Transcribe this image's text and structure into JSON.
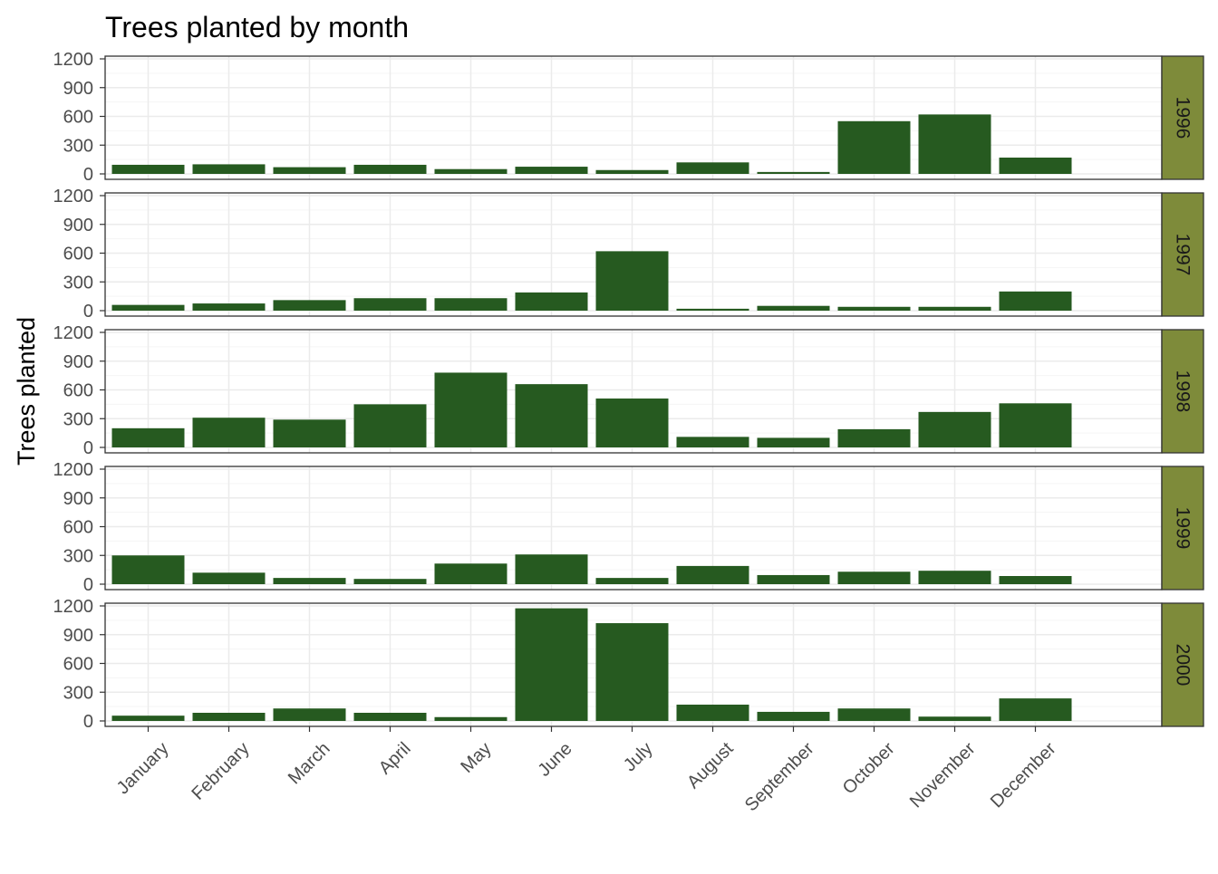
{
  "chart_data": {
    "type": "bar",
    "title": "Trees planted by month",
    "xlabel": "",
    "ylabel": "Trees planted",
    "ylim": [
      0,
      1200
    ],
    "yticks": [
      0,
      300,
      600,
      900,
      1200
    ],
    "categories": [
      "January",
      "February",
      "March",
      "April",
      "May",
      "June",
      "July",
      "August",
      "September",
      "October",
      "November",
      "December"
    ],
    "facet_by": "year",
    "facets": [
      {
        "label": "1996",
        "values": [
          95,
          100,
          70,
          95,
          50,
          75,
          40,
          120,
          20,
          550,
          620,
          170
        ]
      },
      {
        "label": "1997",
        "values": [
          60,
          75,
          110,
          130,
          130,
          190,
          620,
          20,
          50,
          40,
          40,
          200
        ]
      },
      {
        "label": "1998",
        "values": [
          200,
          310,
          290,
          450,
          780,
          660,
          510,
          110,
          100,
          190,
          370,
          460
        ]
      },
      {
        "label": "1999",
        "values": [
          300,
          120,
          65,
          55,
          215,
          310,
          65,
          190,
          95,
          130,
          140,
          85
        ]
      },
      {
        "label": "2000",
        "values": [
          55,
          85,
          130,
          85,
          40,
          1175,
          1020,
          170,
          95,
          130,
          45,
          235
        ]
      }
    ],
    "grid": true,
    "legend": "none",
    "colors": {
      "bar": "#265a20",
      "strip_fill": "#7e8b3a",
      "grid_major": "#ebebeb",
      "grid_minor": "#f5f5f5",
      "panel_border": "#333333"
    }
  }
}
